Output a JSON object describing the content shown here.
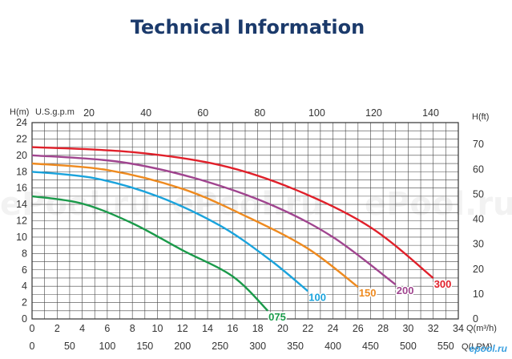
{
  "title": "Technical Information",
  "watermarks": [
    "ePool.ru",
    "ePool.ru",
    "ePool.ru"
  ],
  "brand_mark": "epool.ru",
  "chart_data": {
    "type": "line",
    "title": "Technical Information",
    "axes": {
      "left": {
        "label": "H(m)",
        "range": [
          0,
          24
        ],
        "ticks": [
          0,
          2,
          4,
          6,
          8,
          10,
          12,
          14,
          16,
          18,
          20,
          22,
          24
        ]
      },
      "right": {
        "label": "H(ft)",
        "range": [
          0,
          78.74
        ],
        "ticks": [
          0,
          10,
          20,
          30,
          40,
          50,
          60,
          70
        ]
      },
      "top": {
        "label": "U.S.g.p.m",
        "range": [
          0,
          149.7
        ],
        "ticks": [
          20,
          40,
          60,
          80,
          100,
          120,
          140
        ]
      },
      "bottom_m3h": {
        "label": "Q(m³/h)",
        "range": [
          0,
          34
        ],
        "ticks": [
          0,
          2,
          4,
          6,
          8,
          10,
          12,
          14,
          16,
          18,
          20,
          22,
          24,
          26,
          28,
          30,
          32,
          34
        ]
      },
      "bottom_lpm": {
        "label": "Q(LPM)",
        "range": [
          0,
          566.7
        ],
        "ticks": [
          0,
          50,
          100,
          150,
          200,
          250,
          300,
          350,
          400,
          450,
          500,
          550
        ]
      }
    },
    "x_unit": "m³/h",
    "y_unit": "m",
    "grid": true,
    "series": [
      {
        "name": "075",
        "color": "#1a9a4a",
        "points": [
          [
            0,
            15
          ],
          [
            4,
            14.1
          ],
          [
            8,
            11.7
          ],
          [
            12,
            8.4
          ],
          [
            16,
            5.2
          ],
          [
            18.8,
            1
          ]
        ]
      },
      {
        "name": "100",
        "color": "#1aa3dc",
        "points": [
          [
            0,
            18
          ],
          [
            5,
            17.2
          ],
          [
            10,
            15
          ],
          [
            15,
            11.4
          ],
          [
            19,
            7.2
          ],
          [
            22,
            3.4
          ]
        ]
      },
      {
        "name": "150",
        "color": "#ee8a1f",
        "points": [
          [
            0,
            19
          ],
          [
            6,
            18.2
          ],
          [
            12,
            15.9
          ],
          [
            17,
            12.6
          ],
          [
            22,
            8.6
          ],
          [
            26,
            3.9
          ]
        ]
      },
      {
        "name": "200",
        "color": "#a0458f",
        "points": [
          [
            0,
            20
          ],
          [
            7,
            19.2
          ],
          [
            13,
            17.2
          ],
          [
            19,
            14
          ],
          [
            24,
            10
          ],
          [
            29,
            4.2
          ]
        ]
      },
      {
        "name": "300",
        "color": "#e0202a",
        "points": [
          [
            0,
            21
          ],
          [
            8,
            20.4
          ],
          [
            15,
            18.8
          ],
          [
            21,
            15.8
          ],
          [
            27,
            11.2
          ],
          [
            32,
            5
          ]
        ]
      }
    ]
  }
}
